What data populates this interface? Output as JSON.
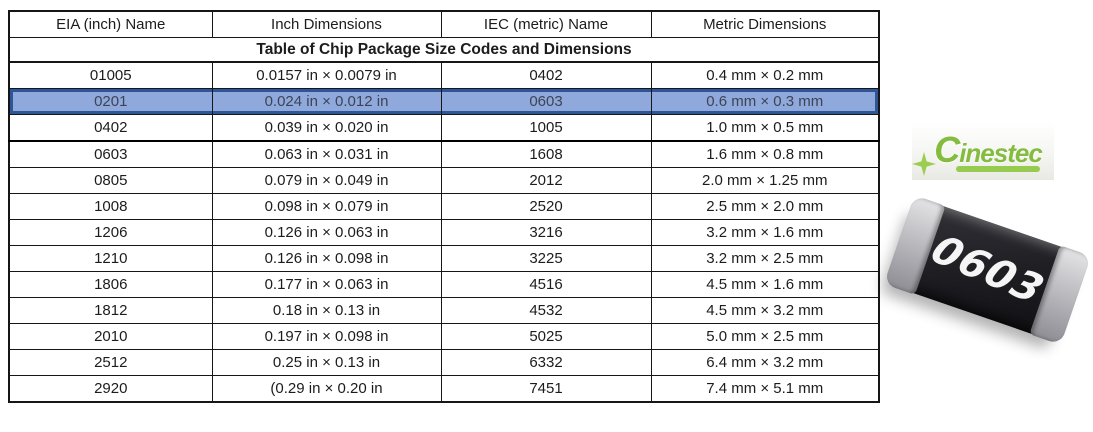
{
  "chart_data": {
    "type": "table",
    "title": "Table of Chip Package Size Codes and Dimensions",
    "columns": [
      "EIA (inch) Name",
      "Inch Dimensions",
      "IEC (metric) Name",
      "Metric Dimensions"
    ],
    "rows": [
      [
        "01005",
        "0.0157 in × 0.0079 in",
        "0402",
        "0.4 mm × 0.2 mm"
      ],
      [
        "0201",
        "0.024 in × 0.012 in",
        "0603",
        "0.6 mm × 0.3 mm"
      ],
      [
        "0402",
        "0.039 in × 0.020 in",
        "1005",
        "1.0 mm × 0.5 mm"
      ],
      [
        "0603",
        "0.063 in × 0.031 in",
        "1608",
        "1.6 mm × 0.8 mm"
      ],
      [
        "0805",
        "0.079 in × 0.049 in",
        "2012",
        "2.0 mm × 1.25 mm"
      ],
      [
        "1008",
        "0.098 in × 0.079 in",
        "2520",
        "2.5 mm × 2.0 mm"
      ],
      [
        "1206",
        "0.126 in × 0.063 in",
        "3216",
        "3.2 mm × 1.6 mm"
      ],
      [
        "1210",
        "0.126 in × 0.098 in",
        "3225",
        "3.2 mm × 2.5 mm"
      ],
      [
        "1806",
        "0.177 in × 0.063 in",
        "4516",
        "4.5 mm × 1.6 mm"
      ],
      [
        "1812",
        "0.18 in × 0.13 in",
        "4532",
        "4.5 mm × 3.2 mm"
      ],
      [
        "2010",
        "0.197 in × 0.098 in",
        "5025",
        "5.0 mm × 2.5 mm"
      ],
      [
        "2512",
        "0.25 in × 0.13 in",
        "6332",
        "6.4 mm × 3.2 mm"
      ],
      [
        "2920",
        "(0.29 in × 0.20 in",
        "7451",
        "7.4 mm × 5.1 mm"
      ]
    ],
    "highlighted_row_index": 1,
    "thick_divider_below_row_index": 2,
    "layout_hints": {
      "grid": "on",
      "all_cells_centered": true
    }
  },
  "logo": {
    "text": "Cinestec"
  },
  "chip": {
    "label": "0603"
  },
  "colors": {
    "highlight_fill": "#8FA9DC",
    "highlight_border": "#2E5596",
    "highlight_text": "#3D4454",
    "table_border": "#161616",
    "logo_green": "#8CC63F",
    "chip_body": "#1E1E23",
    "chip_caps": "#BCBCC1"
  }
}
